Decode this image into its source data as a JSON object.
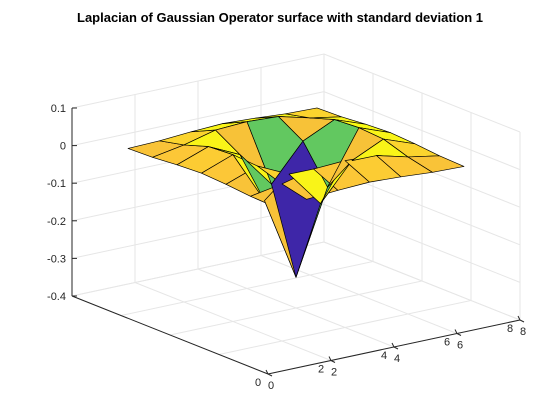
{
  "chart_data": {
    "type": "surface",
    "title": "Laplacian of Gaussian Operator surface with standard deviation 1",
    "xlabel": "",
    "ylabel": "",
    "zlabel": "",
    "x": [
      1,
      2,
      3,
      4,
      5,
      6,
      7
    ],
    "y": [
      1,
      2,
      3,
      4,
      5,
      6,
      7
    ],
    "xlim": [
      0,
      8
    ],
    "ylim": [
      0,
      8
    ],
    "zlim": [
      -0.4,
      0.1
    ],
    "x_ticks": [
      0,
      2,
      4,
      6,
      8
    ],
    "y_ticks": [
      0,
      2,
      4,
      6,
      8
    ],
    "z_ticks": [
      -0.4,
      -0.3,
      -0.2,
      -0.1,
      0,
      0.1
    ],
    "x_tick_labels": [
      "0",
      "2",
      "4",
      "6",
      "8"
    ],
    "y_tick_labels": [
      "0",
      "2",
      "4",
      "6",
      "8"
    ],
    "z_tick_labels": [
      "-0.4",
      "-0.3",
      "-0.2",
      "-0.1",
      "0",
      "0.1"
    ],
    "z": [
      [
        0.0005,
        0.0028,
        0.0087,
        0.0125,
        0.0087,
        0.0028,
        0.0005
      ],
      [
        0.0028,
        0.0177,
        0.0394,
        0.0438,
        0.0394,
        0.0177,
        0.0028
      ],
      [
        0.0087,
        0.0394,
        0.0,
        -0.0965,
        0.0,
        0.0394,
        0.0087
      ],
      [
        0.0125,
        0.0438,
        -0.0965,
        -0.3183,
        -0.0965,
        0.0438,
        0.0125
      ],
      [
        0.0087,
        0.0394,
        0.0,
        -0.0965,
        0.0,
        0.0394,
        0.0087
      ],
      [
        0.0028,
        0.0177,
        0.0394,
        0.0438,
        0.0394,
        0.0177,
        0.0028
      ],
      [
        0.0005,
        0.0028,
        0.0087,
        0.0125,
        0.0087,
        0.0028,
        0.0005
      ]
    ],
    "colormap": [
      "#3e26a8",
      "#4837d8",
      "#3f7bfd",
      "#1fa8e0",
      "#0dbfbd",
      "#36c48d",
      "#59c964",
      "#a2c242",
      "#e3b936",
      "#fcc538",
      "#f9fb14"
    ],
    "edge_color": "#000000",
    "grid": true,
    "box": false
  }
}
